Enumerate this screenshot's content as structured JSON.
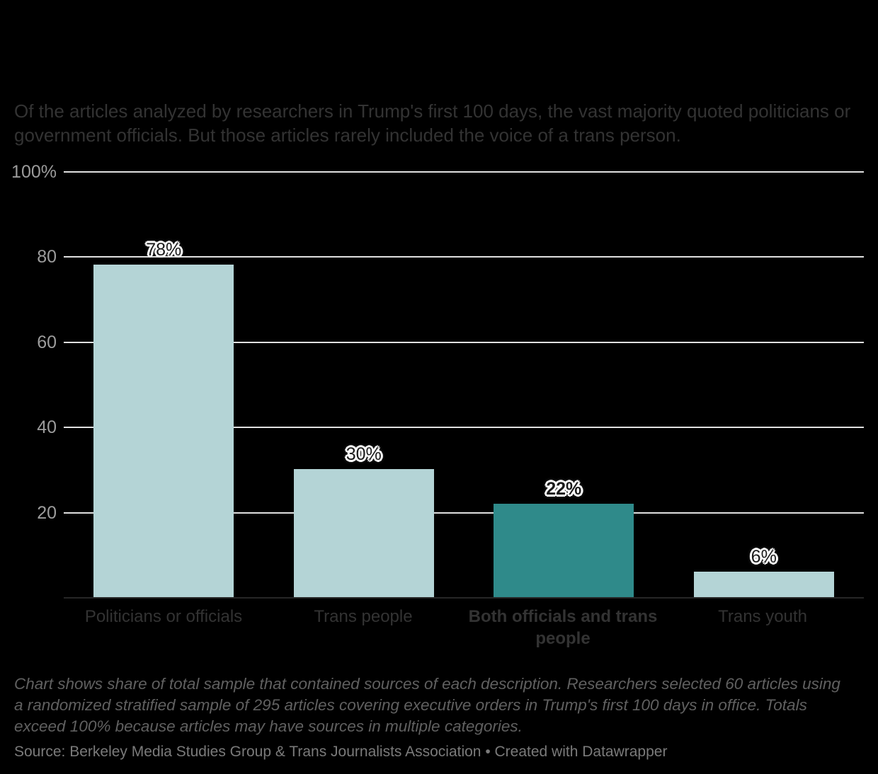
{
  "header": {
    "description": "Of the articles analyzed by researchers in Trump's first 100 days, the vast majority quoted politicians or government officials. But those articles rarely included the voice of a trans person."
  },
  "chart_data": {
    "type": "bar",
    "title": "",
    "xlabel": "",
    "ylabel": "",
    "categories": [
      "Politicians or officials",
      "Trans people",
      "Both officials and trans people",
      "Trans youth"
    ],
    "values": [
      78,
      30,
      22,
      6
    ],
    "value_labels": [
      "78%",
      "30%",
      "22%",
      "6%"
    ],
    "highlight_index": 2,
    "y_ticks": [
      {
        "label": "100%",
        "value": 100
      },
      {
        "label": "80",
        "value": 80
      },
      {
        "label": "60",
        "value": 60
      },
      {
        "label": "40",
        "value": 40
      },
      {
        "label": "20",
        "value": 20
      }
    ],
    "ylim": [
      0,
      100
    ],
    "grid": true,
    "legend": "none",
    "colors": {
      "bar_default": "#b4d4d6",
      "bar_highlight": "#2f8a8a",
      "gridline": "#e0e0e0",
      "background": "#000000"
    }
  },
  "footer": {
    "note": "Chart shows share of total sample that contained sources of each description. Researchers selected 60 articles using a randomized stratified sample of 295 articles covering executive orders in Trump's first 100 days in office. Totals exceed 100% because articles may have sources in multiple categories.",
    "source": "Source: Berkeley Media Studies Group & Trans Journalists Association • Created with Datawrapper"
  }
}
